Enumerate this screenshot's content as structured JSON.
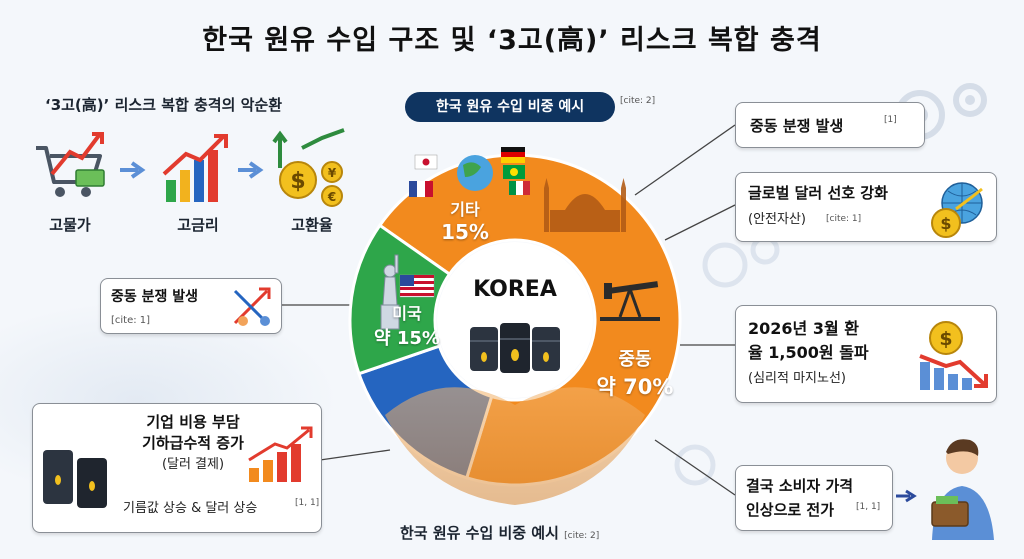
{
  "title": "한국 원유 수입 구조 및 ‘3고(高)’ 리스크 복합 충격",
  "vicious_cycle": {
    "title": "‘3고(高)’ 리스크 복합 충격의 악순환",
    "items": [
      "고물가",
      "고금리",
      "고환율"
    ]
  },
  "circle": {
    "title": "한국 원유 수입 비중 예시",
    "cite": "[cite: 2]",
    "center": "KOREA",
    "segments": [
      {
        "name": "중동",
        "value_label": "약 70%",
        "value": 70,
        "color": "#f28a1e"
      },
      {
        "name": "미국",
        "value_label": "약 15%",
        "value": 15,
        "color": "#2565c0"
      },
      {
        "name": "기타",
        "value_label": "15%",
        "value": 15,
        "color": "#2ea64a"
      }
    ]
  },
  "bottom_caption": {
    "text": "한국 원유 수입 비중 예시",
    "cite": "[cite: 2]"
  },
  "left_boxes": {
    "conflict": {
      "text": "중동 분쟁 발생",
      "cite": "[cite: 1]"
    },
    "corporate": {
      "line1": "기업 비용 부담",
      "line2": "기하급수적 증가",
      "line3": "(달러 결제)",
      "line4": "기름값 상승 & 달러 상승",
      "cite": "[1, 1]"
    }
  },
  "right_boxes": {
    "conflict": {
      "text": "중동 분쟁 발생",
      "cite": "[1]"
    },
    "dollar": {
      "line1": "글로벌 달러 선호 강화",
      "line2": "(안전자산)",
      "cite": "[cite: 1]"
    },
    "fx": {
      "line1": "2026년 3월 환",
      "line2": "율 1,500원 돌파",
      "line3": "(심리적 마지노선)"
    },
    "consumer": {
      "line1": "결국 소비자 가격",
      "line2": "인상으로 전가",
      "cite": "[1, 1]"
    }
  },
  "colors": {
    "navy": "#0f3460",
    "orange": "#f28a1e",
    "blue": "#2565c0",
    "green": "#2ea64a",
    "red": "#e23b2e"
  }
}
